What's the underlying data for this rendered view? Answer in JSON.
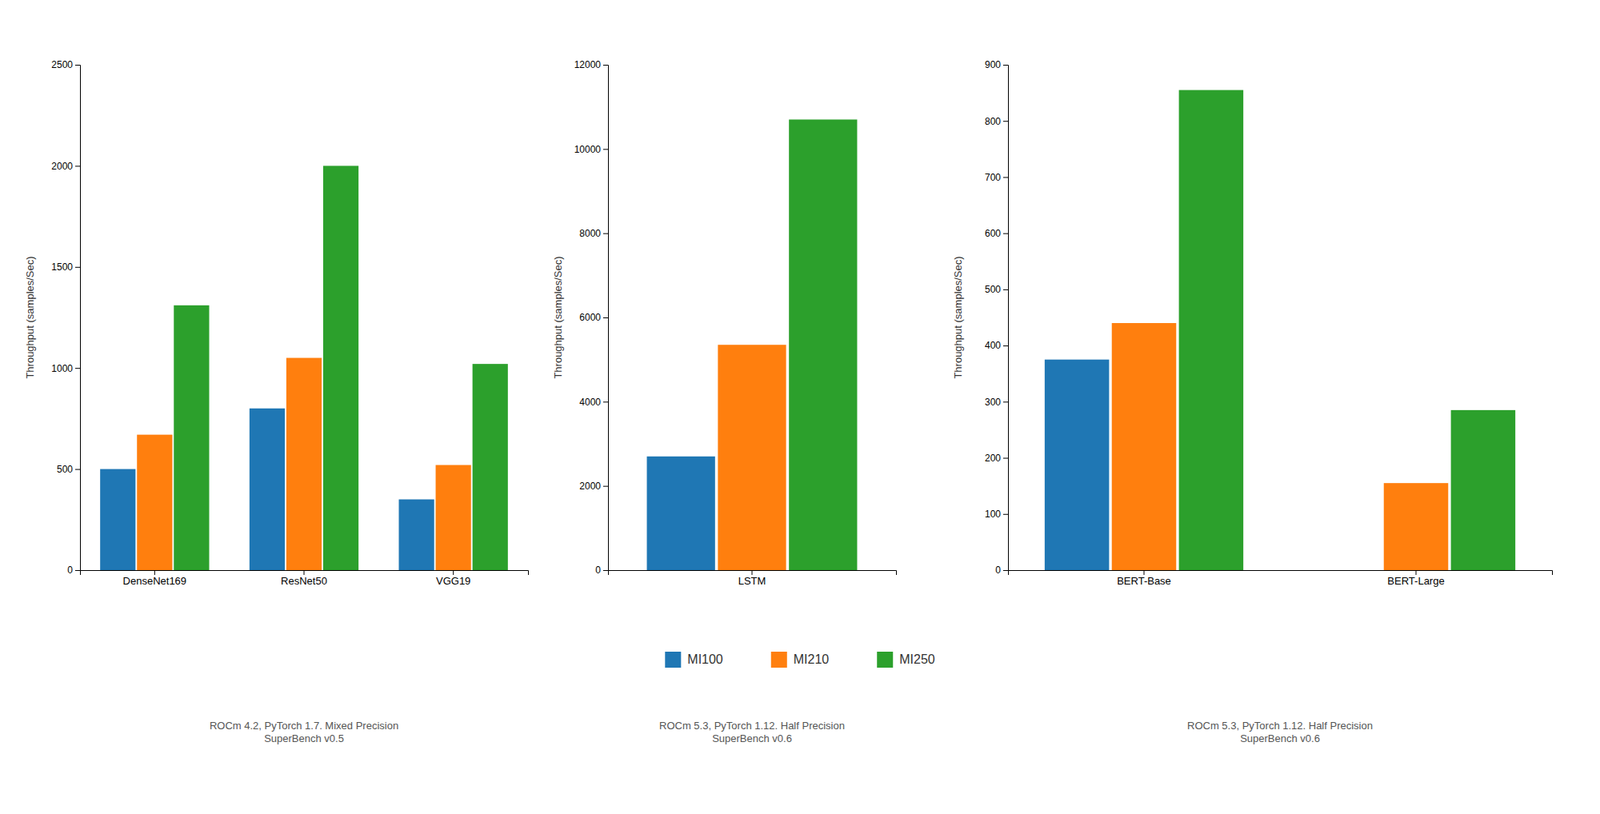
{
  "chart_data": [
    {
      "type": "bar",
      "categories": [
        "DenseNet169",
        "ResNet50",
        "VGG19"
      ],
      "series": [
        {
          "name": "MI100",
          "values": [
            500,
            800,
            350
          ]
        },
        {
          "name": "MI210",
          "values": [
            670,
            1050,
            520
          ]
        },
        {
          "name": "MI250",
          "values": [
            1310,
            2000,
            1020
          ]
        }
      ],
      "ylabel": "Throughput (samples/Sec)",
      "ylim": [
        0,
        2500
      ],
      "yticks": [
        0,
        500,
        1000,
        1500,
        2000,
        2500
      ],
      "subtitle": "ROCm 4.2, PyTorch 1.7. Mixed Precision\nSuperBench v0.5",
      "grid": false,
      "legend": "bottom"
    },
    {
      "type": "bar",
      "categories": [
        "LSTM"
      ],
      "series": [
        {
          "name": "MI100",
          "values": [
            2700
          ]
        },
        {
          "name": "MI210",
          "values": [
            5350
          ]
        },
        {
          "name": "MI250",
          "values": [
            10700
          ]
        }
      ],
      "ylabel": "Throughput (samples/Sec)",
      "ylim": [
        0,
        12000
      ],
      "yticks": [
        0,
        2000,
        4000,
        6000,
        8000,
        10000,
        12000
      ],
      "subtitle": "ROCm 5.3, PyTorch 1.12. Half Precision\nSuperBench v0.6",
      "grid": false,
      "legend": "bottom"
    },
    {
      "type": "bar",
      "categories": [
        "BERT-Base",
        "BERT-Large"
      ],
      "series": [
        {
          "name": "MI100",
          "values": [
            375,
            0
          ]
        },
        {
          "name": "MI210",
          "values": [
            440,
            155
          ]
        },
        {
          "name": "MI250",
          "values": [
            855,
            285
          ]
        }
      ],
      "ylabel": "Throughput (samples/Sec)",
      "ylim": [
        0,
        900
      ],
      "yticks": [
        0,
        100,
        200,
        300,
        400,
        500,
        600,
        700,
        800,
        900
      ],
      "subtitle": "ROCm 5.3, PyTorch 1.12. Half Precision\nSuperBench v0.6",
      "grid": false,
      "legend": "bottom"
    }
  ]
}
